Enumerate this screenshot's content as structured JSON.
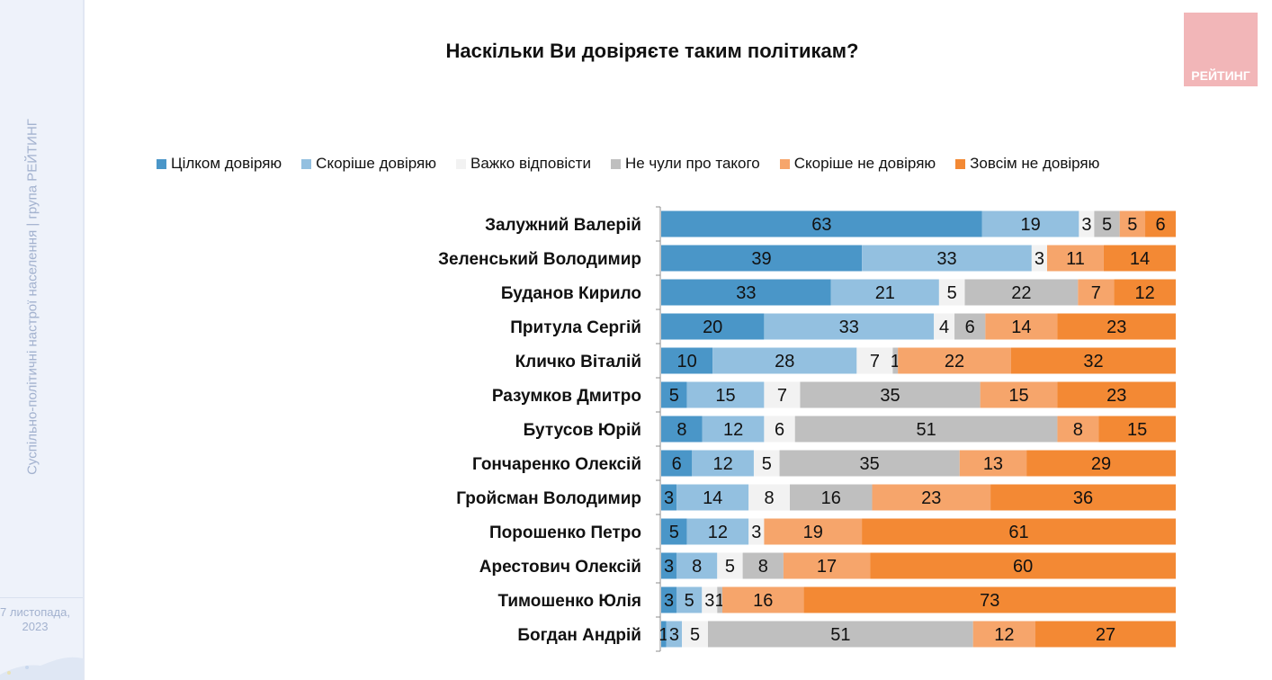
{
  "sidebar": {
    "caption": "Суспільно-політичні настрої населення | група РЕЙТИНГ",
    "date_line1": "7 листопада,",
    "date_line2": "2023"
  },
  "logo": {
    "text": "РЕЙТИНГ",
    "color": "#f2b6b8"
  },
  "chart_data": {
    "type": "bar",
    "orientation": "horizontal",
    "stacked": true,
    "title": "Наскільки Ви довіряєте таким політикам?",
    "xlabel": "",
    "ylabel": "",
    "legend_position": "top",
    "categories": [
      "Залужний Валерій",
      "Зеленський Володимир",
      "Буданов Кирило",
      "Притула Сергій",
      "Кличко Віталій",
      "Разумков Дмитро",
      "Бутусов Юрій",
      "Гончаренко Олексій",
      "Гройсман Володимир",
      "Порошенко Петро",
      "Арестович Олексій",
      "Тимошенко Юлія",
      "Богдан Андрій"
    ],
    "series": [
      {
        "name": "Цілком довіряю",
        "color": "#4a96c8",
        "values": [
          63,
          39,
          33,
          20,
          10,
          5,
          8,
          6,
          3,
          5,
          3,
          3,
          1
        ]
      },
      {
        "name": "Скоріше довіряю",
        "color": "#93c0e0",
        "values": [
          19,
          33,
          21,
          33,
          28,
          15,
          12,
          12,
          14,
          12,
          8,
          5,
          3
        ]
      },
      {
        "name": "Важко відповісти",
        "color": "#f2f2f2",
        "values": [
          3,
          3,
          5,
          4,
          7,
          7,
          6,
          5,
          8,
          3,
          5,
          3,
          5
        ]
      },
      {
        "name": "Не чули про такого",
        "color": "#bfbfbf",
        "values": [
          5,
          0,
          22,
          6,
          1,
          35,
          51,
          35,
          16,
          0,
          8,
          1,
          51
        ]
      },
      {
        "name": "Скоріше не довіряю",
        "color": "#f6a56b",
        "values": [
          5,
          11,
          7,
          14,
          22,
          15,
          8,
          13,
          23,
          19,
          17,
          16,
          12
        ]
      },
      {
        "name": "Зовсім не довіряю",
        "color": "#f38934",
        "values": [
          6,
          14,
          12,
          23,
          32,
          23,
          15,
          29,
          36,
          61,
          60,
          73,
          27
        ]
      }
    ],
    "data_labels": [
      [
        "63",
        "19",
        "3",
        "5",
        "5",
        "6"
      ],
      [
        "39",
        "33",
        "3",
        "",
        "11",
        "14"
      ],
      [
        "33",
        "21",
        "5",
        "22",
        "7",
        "12"
      ],
      [
        "20",
        "33",
        "4",
        "6",
        "14",
        "23"
      ],
      [
        "10",
        "28",
        "7",
        "1",
        "22",
        "32"
      ],
      [
        "5",
        "15",
        "7",
        "35",
        "15",
        "23"
      ],
      [
        "8",
        "12",
        "6",
        "51",
        "8",
        "15"
      ],
      [
        "6",
        "12",
        "5",
        "35",
        "13",
        "29"
      ],
      [
        "3",
        "14",
        "8",
        "16",
        "23",
        "36"
      ],
      [
        "5",
        "12",
        "3",
        "",
        "19",
        "61"
      ],
      [
        "3",
        "8",
        "5",
        "8",
        "17",
        "60"
      ],
      [
        "3",
        "5",
        "3",
        "1",
        "16",
        "73"
      ],
      [
        "1",
        "3",
        "5",
        "51",
        "12",
        "27"
      ]
    ],
    "unit": "%"
  }
}
